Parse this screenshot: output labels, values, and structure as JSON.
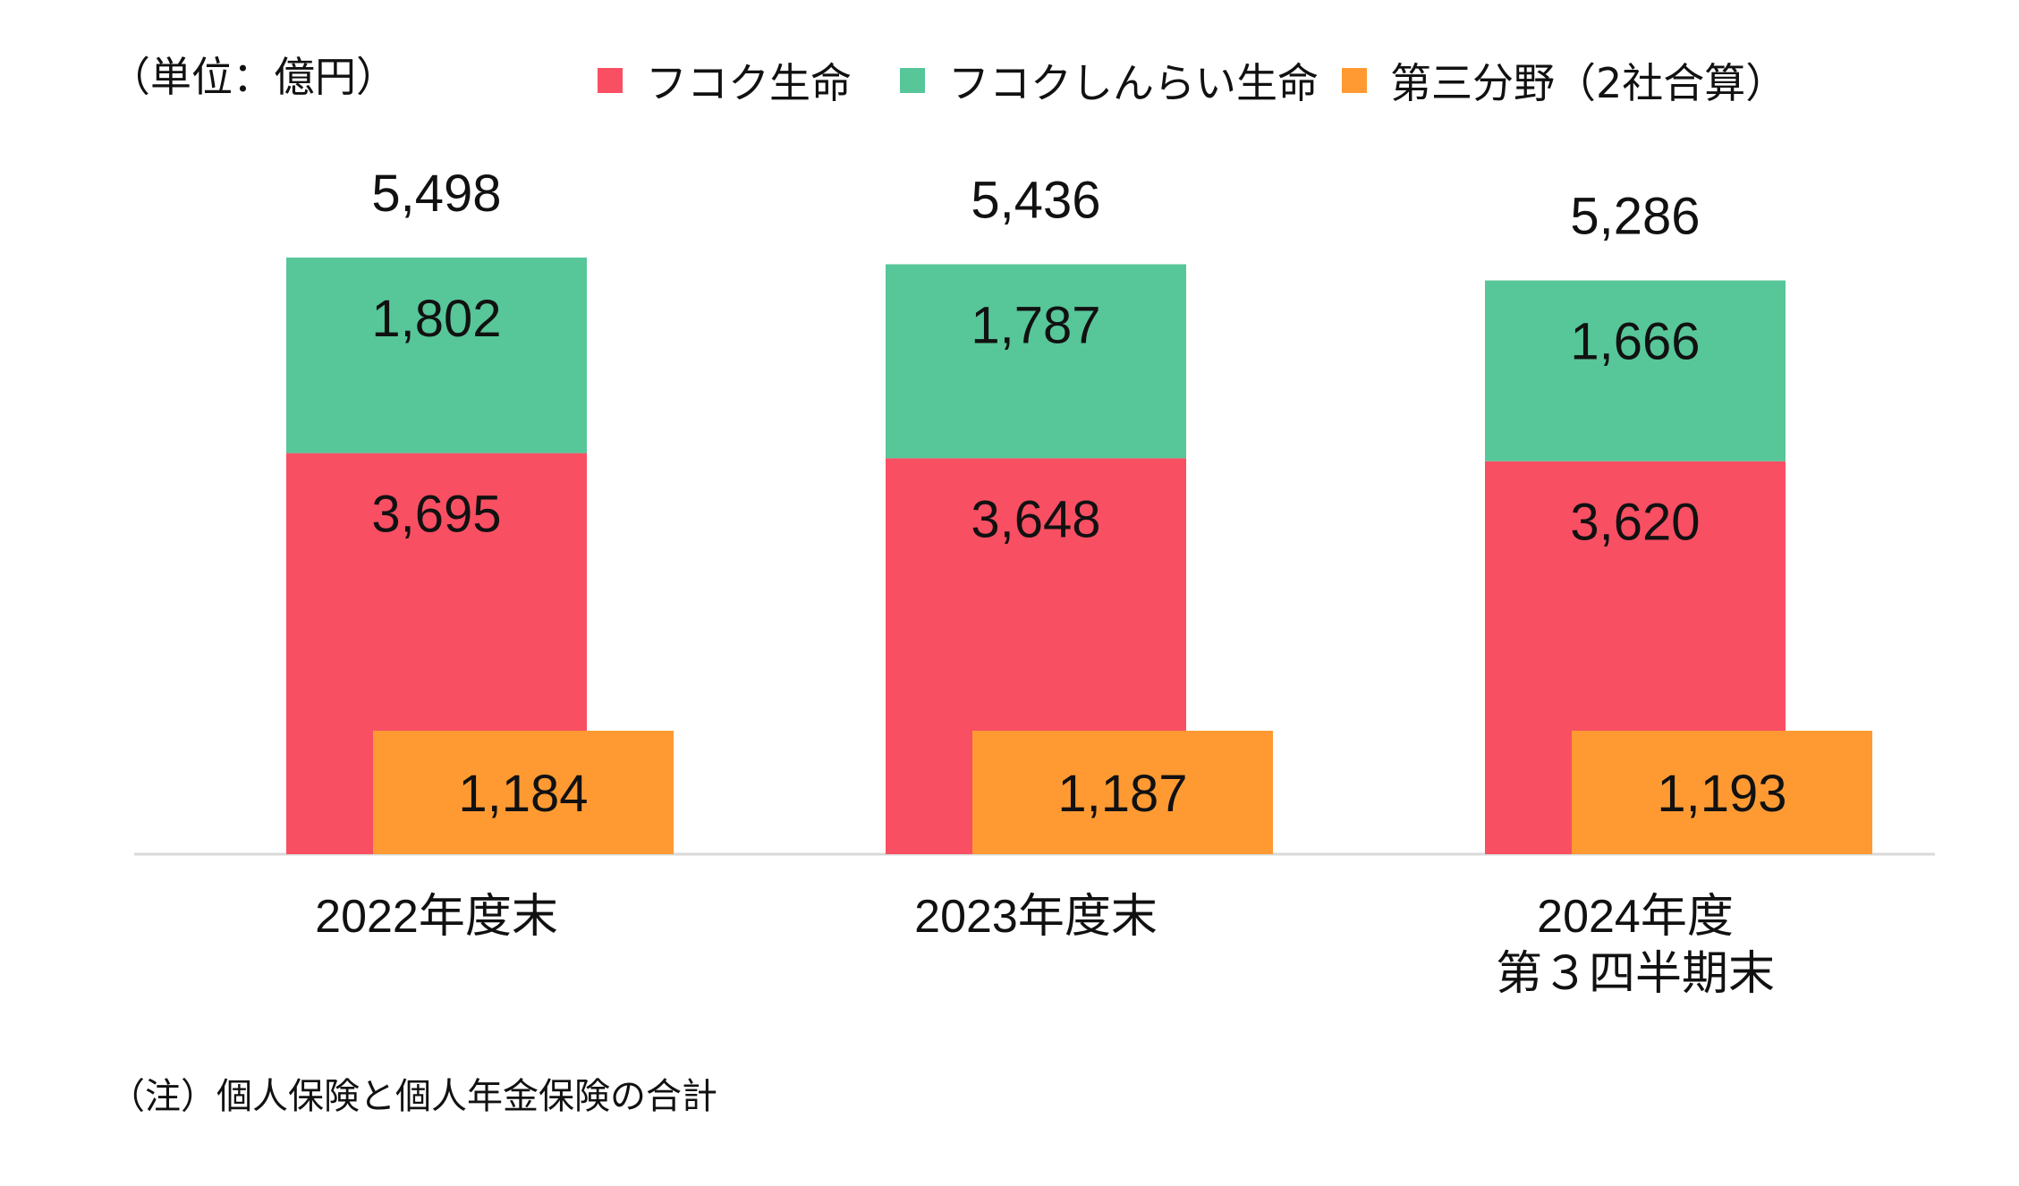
{
  "unit_label": "（単位：億円）",
  "note": "（注）個人保険と個人年金保険の合計",
  "legend": [
    {
      "label": "フコク生命",
      "color": "#F94F63"
    },
    {
      "label": "フコクしんらい生命",
      "color": "#57C699"
    },
    {
      "label": "第三分野（2社合算）",
      "color": "#FF9A33"
    }
  ],
  "chart_data": {
    "type": "bar",
    "stacked": true,
    "categories": [
      [
        "2022年度末"
      ],
      [
        "2023年度末"
      ],
      [
        "2024年度",
        "第３四半期末"
      ]
    ],
    "series": [
      {
        "name": "フコク生命",
        "color": "#F94F63",
        "values": [
          3695,
          3648,
          3620
        ],
        "labels": [
          "3,695",
          "3,648",
          "3,620"
        ]
      },
      {
        "name": "フコクしんらい生命",
        "color": "#57C699",
        "values": [
          1802,
          1787,
          1666
        ],
        "labels": [
          "1,802",
          "1,787",
          "1,666"
        ]
      }
    ],
    "totals": {
      "values": [
        5498,
        5436,
        5286
      ],
      "labels": [
        "5,498",
        "5,436",
        "5,286"
      ]
    },
    "overlay_series": {
      "name": "第三分野（2社合算）",
      "color": "#FF9A33",
      "values": [
        1184,
        1187,
        1193
      ],
      "labels": [
        "1,184",
        "1,187",
        "1,193"
      ]
    },
    "ylim": [
      0,
      5498
    ],
    "grid": false,
    "legend_position": "top"
  }
}
